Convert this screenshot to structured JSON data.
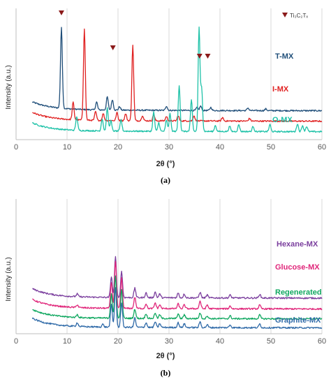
{
  "chart_data": [
    {
      "type": "line",
      "panel_label": "(a)",
      "xlabel": "2θ (°)",
      "ylabel": "Intensity (a.u.)",
      "xlim": [
        0,
        60
      ],
      "xticks": [
        "0",
        "10",
        "20",
        "30",
        "40",
        "50",
        "60"
      ],
      "grid": "vertical",
      "legend": {
        "label": "Ti₃C₂Tₓ",
        "marker": "down-triangle",
        "placement": "top-right"
      },
      "markers": [
        {
          "x": 8.9,
          "label": "Ti₃C₂Tₓ"
        },
        {
          "x": 19.0,
          "label": "Ti₃C₂Tₓ"
        },
        {
          "x": 36.0,
          "label": "Ti₃C₂Tₓ"
        },
        {
          "x": 37.6,
          "label": "Ti₃C₂Tₓ"
        }
      ],
      "series": [
        {
          "name": "T-MX",
          "color": "#1f4e79",
          "offset": 2.8,
          "base": 1.0,
          "decay": 3.8,
          "peaks": [
            [
              8.9,
              9.2
            ],
            [
              15.8,
              0.9
            ],
            [
              17.9,
              1.5
            ],
            [
              18.9,
              1.2
            ],
            [
              20.3,
              0.4
            ],
            [
              29.5,
              0.5
            ],
            [
              35.5,
              0.35
            ],
            [
              36.2,
              0.5
            ],
            [
              38.2,
              0.35
            ],
            [
              45.5,
              0.3
            ],
            [
              49.0,
              0.2
            ]
          ]
        },
        {
          "name": "I-MX",
          "color": "#e02020",
          "offset": 1.6,
          "base": 1.0,
          "decay": 3.5,
          "peaks": [
            [
              11.2,
              2.0
            ],
            [
              13.4,
              10.5
            ],
            [
              15.6,
              1.0
            ],
            [
              17.1,
              0.8
            ],
            [
              19.8,
              0.9
            ],
            [
              21.5,
              0.8
            ],
            [
              22.9,
              8.6
            ],
            [
              24.8,
              0.6
            ],
            [
              27.0,
              0.7
            ],
            [
              29.5,
              0.5
            ],
            [
              31.8,
              0.6
            ],
            [
              34.9,
              0.6
            ],
            [
              40.5,
              0.4
            ],
            [
              45.8,
              0.3
            ]
          ]
        },
        {
          "name": "O-MX",
          "color": "#1fc2a8",
          "offset": 0.4,
          "base": 1.0,
          "decay": 3.5,
          "peaks": [
            [
              11.9,
              1.6
            ],
            [
              16.9,
              1.4
            ],
            [
              17.9,
              2.6
            ],
            [
              18.6,
              1.2
            ],
            [
              20.6,
              1.3
            ],
            [
              27.0,
              2.2
            ],
            [
              28.0,
              1.0
            ],
            [
              29.5,
              1.3
            ],
            [
              30.2,
              2.0
            ],
            [
              32.0,
              5.3
            ],
            [
              34.4,
              3.6
            ],
            [
              35.9,
              11.8
            ],
            [
              36.4,
              5.0
            ],
            [
              39.1,
              0.7
            ],
            [
              41.9,
              0.6
            ],
            [
              43.7,
              0.8
            ],
            [
              46.5,
              0.6
            ],
            [
              49.8,
              0.8
            ],
            [
              55.2,
              0.9
            ],
            [
              56.2,
              0.7
            ],
            [
              57.0,
              0.6
            ]
          ]
        }
      ]
    },
    {
      "type": "line",
      "panel_label": "(b)",
      "xlabel": "2θ (°)",
      "ylabel": "Intensity (a.u.)",
      "xlim": [
        0,
        60
      ],
      "xticks": [
        "0",
        "10",
        "20",
        "30",
        "40",
        "50",
        "60"
      ],
      "grid": "vertical",
      "series": [
        {
          "name": "Hexane-MX",
          "color": "#7b3f9e",
          "offset": 3.3,
          "base": 1.0,
          "decay": 3.5,
          "peaks": [
            [
              12.0,
              0.3
            ],
            [
              18.7,
              2.2
            ],
            [
              19.5,
              4.3
            ],
            [
              20.7,
              2.8
            ],
            [
              23.3,
              1.0
            ],
            [
              25.5,
              0.5
            ],
            [
              27.3,
              0.6
            ],
            [
              28.2,
              0.4
            ],
            [
              31.8,
              0.5
            ],
            [
              33.0,
              0.4
            ],
            [
              36.1,
              0.6
            ],
            [
              37.5,
              0.3
            ],
            [
              42.0,
              0.3
            ],
            [
              47.8,
              0.4
            ]
          ]
        },
        {
          "name": "Glucose-MX",
          "color": "#e0267a",
          "offset": 2.15,
          "base": 1.0,
          "decay": 3.5,
          "peaks": [
            [
              12.0,
              0.3
            ],
            [
              18.7,
              2.8
            ],
            [
              19.5,
              5.0
            ],
            [
              20.7,
              3.2
            ],
            [
              23.3,
              1.2
            ],
            [
              25.5,
              0.5
            ],
            [
              27.3,
              0.6
            ],
            [
              28.2,
              0.4
            ],
            [
              31.8,
              0.5
            ],
            [
              33.0,
              0.4
            ],
            [
              36.1,
              0.8
            ],
            [
              37.5,
              0.4
            ],
            [
              42.0,
              0.3
            ],
            [
              47.8,
              0.4
            ]
          ]
        },
        {
          "name": "Regenerated",
          "color": "#10a860",
          "offset": 1.1,
          "base": 1.0,
          "decay": 3.5,
          "peaks": [
            [
              12.0,
              0.3
            ],
            [
              18.7,
              2.6
            ],
            [
              19.5,
              4.5
            ],
            [
              20.7,
              3.0
            ],
            [
              23.3,
              1.0
            ],
            [
              25.5,
              0.5
            ],
            [
              27.3,
              0.6
            ],
            [
              28.2,
              0.4
            ],
            [
              31.8,
              0.5
            ],
            [
              33.0,
              0.4
            ],
            [
              36.1,
              0.6
            ],
            [
              37.5,
              0.3
            ],
            [
              42.0,
              0.3
            ],
            [
              47.8,
              0.4
            ]
          ]
        },
        {
          "name": "Graphite-MX",
          "color": "#2f6aa8",
          "offset": 0.15,
          "base": 1.0,
          "decay": 3.5,
          "peaks": [
            [
              12.0,
              0.4
            ],
            [
              17.0,
              0.3
            ],
            [
              18.7,
              2.4
            ],
            [
              19.5,
              4.2
            ],
            [
              20.7,
              2.6
            ],
            [
              23.3,
              1.0
            ],
            [
              25.5,
              0.5
            ],
            [
              27.3,
              0.6
            ],
            [
              28.2,
              0.4
            ],
            [
              31.8,
              0.5
            ],
            [
              33.0,
              0.4
            ],
            [
              36.1,
              0.6
            ],
            [
              37.5,
              0.3
            ],
            [
              42.0,
              0.3
            ],
            [
              47.8,
              0.4
            ]
          ]
        }
      ]
    }
  ]
}
